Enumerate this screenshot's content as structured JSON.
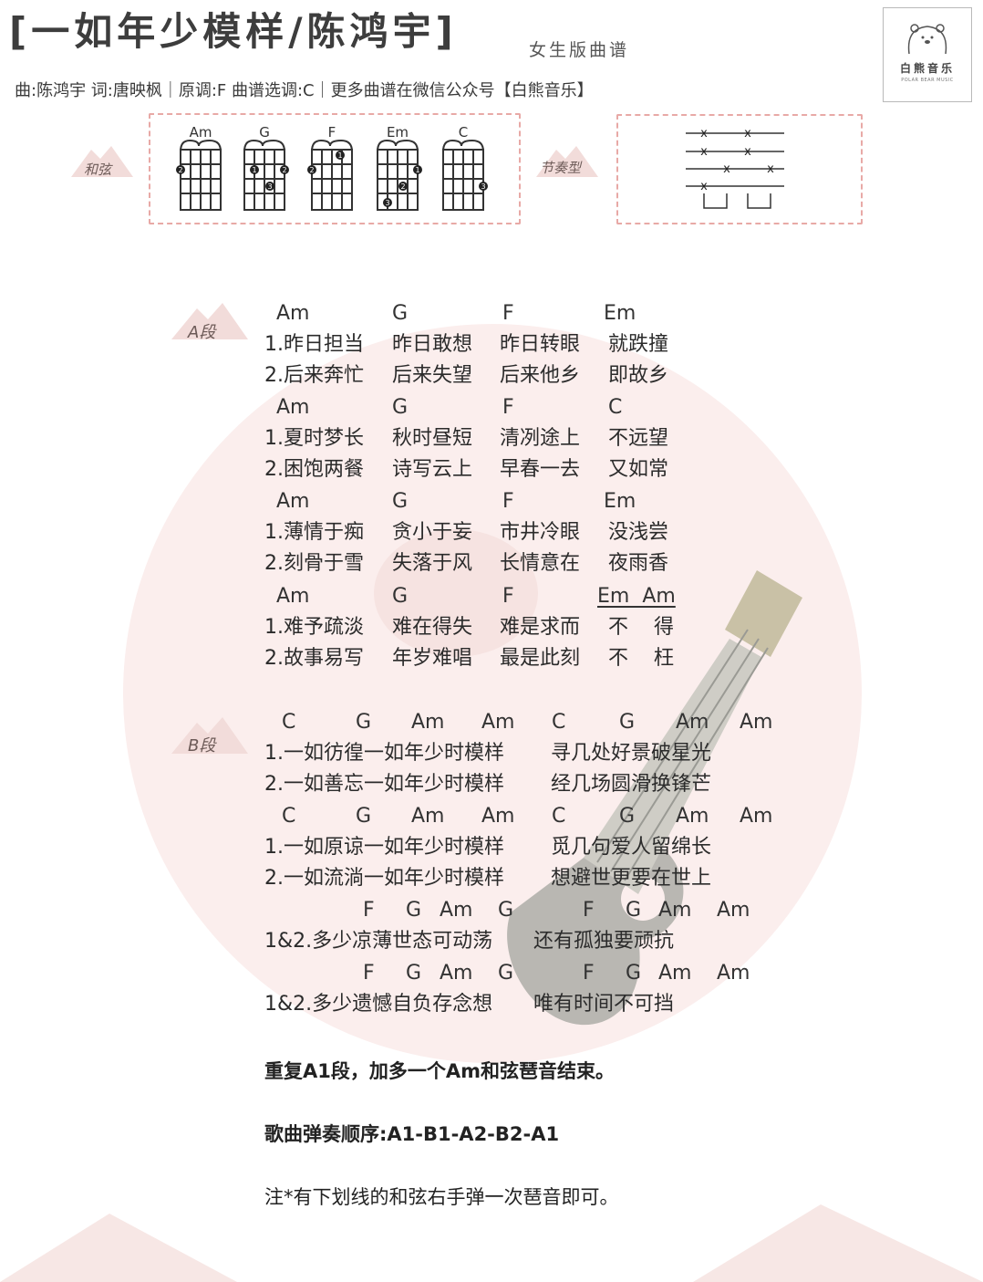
{
  "header": {
    "title": "[一如年少模样/陈鸿宇]",
    "subtitle": "女生版曲谱",
    "credits": "曲:陈鸿宇  词:唐映枫｜原调:F 曲谱选调:C｜更多曲谱在微信公众号【白熊音乐】"
  },
  "logo": {
    "name": "白熊音乐",
    "english": "POLAR BEAR MUSIC"
  },
  "chord_section": {
    "label": "和弦",
    "chords": [
      "Am",
      "G",
      "F",
      "Em",
      "C"
    ]
  },
  "rhythm_section": {
    "label": "节奏型"
  },
  "sections": {
    "a_label": "A段",
    "b_label": "B段"
  },
  "section_a": {
    "c1": [
      "Am",
      "G",
      "F",
      "Em"
    ],
    "l1": [
      "1.昨日担当",
      "昨日敢想",
      "昨日转眼",
      "就跌撞"
    ],
    "l2": [
      "2.后来奔忙",
      "后来失望",
      "后来他乡",
      "即故乡"
    ],
    "c2": [
      "Am",
      "G",
      "F",
      "C"
    ],
    "l3": [
      "1.夏时梦长",
      "秋时昼短",
      "清冽途上",
      "不远望"
    ],
    "l4": [
      "2.困饱两餐",
      "诗写云上",
      "早春一去",
      "又如常"
    ],
    "c3": [
      "Am",
      "G",
      "F",
      "Em"
    ],
    "l5": [
      "1.薄情于痴",
      "贪小于妄",
      "市井冷眼",
      "没浅尝"
    ],
    "l6": [
      "2.刻骨于雪",
      "失落于风",
      "长情意在",
      "夜雨香"
    ],
    "c4": [
      "Am",
      "G",
      "F",
      "Em  Am"
    ],
    "l7": [
      "1.难予疏淡",
      "难在得失",
      "难是求而",
      "不",
      "得"
    ],
    "l8": [
      "2.故事易写",
      "年岁难唱",
      "最是此刻",
      "不",
      "枉"
    ]
  },
  "section_b": {
    "c1": [
      "C",
      "G",
      "Am",
      "Am",
      "C",
      "G",
      "Am",
      "Am"
    ],
    "l1": [
      "1.一如彷徨一如年少时模样",
      "寻几处好景破星光"
    ],
    "l2": [
      "2.一如善忘一如年少时模样",
      "经几场圆滑换锋芒"
    ],
    "c2": [
      "C",
      "G",
      "Am",
      "Am",
      "C",
      "G",
      "Am",
      "Am"
    ],
    "l3": [
      "1.一如原谅一如年少时模样",
      "觅几句爱人留绵长"
    ],
    "l4": [
      "2.一如流淌一如年少时模样",
      "想避世更要在世上"
    ],
    "c3": [
      "F",
      "G",
      "Am",
      "G",
      "F",
      "G",
      "Am",
      "Am"
    ],
    "l5": [
      "1&2.多少凉薄世态可动荡",
      "还有孤独要顽抗"
    ],
    "c4": [
      "F",
      "G",
      "Am",
      "G",
      "F",
      "G",
      "Am",
      "Am"
    ],
    "l6": [
      "1&2.多少遗憾自负存念想",
      "唯有时间不可挡"
    ]
  },
  "notes": {
    "repeat": "重复A1段，加多一个Am和弦琶音结束。",
    "order": "歌曲弹奏顺序:A1-B1-A2-B2-A1",
    "footnote": "注*有下划线的和弦右手弹一次琶音即可。"
  },
  "colors": {
    "accent_pink": "#e8a9a6",
    "bg_circle": "#fbeeed",
    "ukulele_body": "#b9b7b2",
    "tag_bg": "#f2dcda"
  }
}
